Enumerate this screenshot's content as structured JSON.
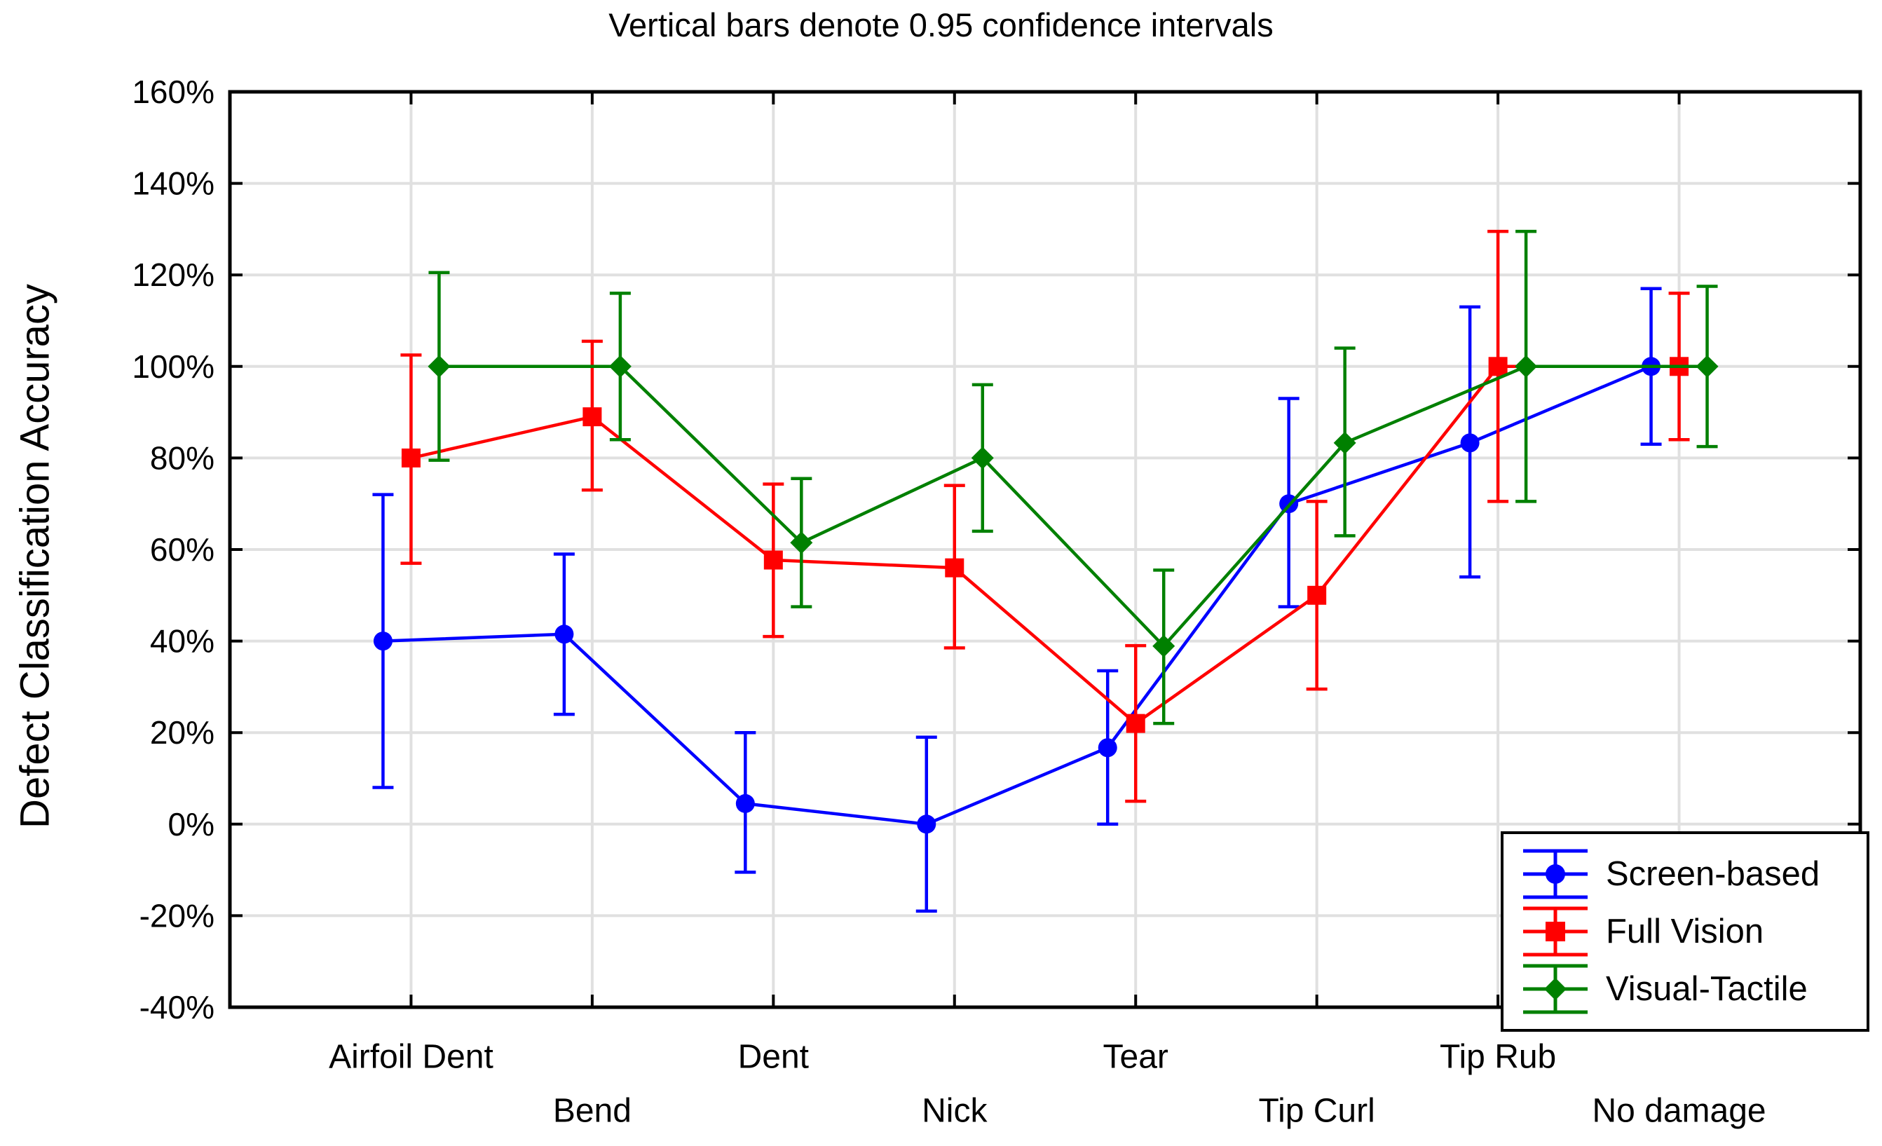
{
  "chart_data": {
    "type": "line",
    "title": "Vertical bars denote 0.95 confidence intervals",
    "xlabel": "",
    "ylabel": "Defect Classification Accuracy",
    "categories": [
      "Airfoil Dent",
      "Bend",
      "Dent",
      "Nick",
      "Tear",
      "Tip Curl",
      "Tip Rub",
      "No damage"
    ],
    "y_tick_labels": [
      "160%",
      "140%",
      "120%",
      "100%",
      "80%",
      "60%",
      "40%",
      "20%",
      "0%",
      "-20%",
      "-40%"
    ],
    "y_tick_values": [
      160,
      140,
      120,
      100,
      80,
      60,
      40,
      20,
      0,
      -20,
      -40
    ],
    "ylim": [
      -40,
      160
    ],
    "unit": "%",
    "grid": true,
    "legend_position": "bottom-right",
    "error_bar_meaning": "0.95 confidence intervals",
    "colors": {
      "grid": "#E0E0E0",
      "axis": "#000000",
      "background": "#FFFFFF"
    },
    "series": [
      {
        "name": "Screen-based",
        "marker": "circle",
        "color": "#0000FF",
        "values": [
          40,
          41.5,
          4.5,
          0,
          16.7,
          70,
          83.3,
          100
        ],
        "ci_low": [
          8,
          24,
          -10.5,
          -19,
          0,
          47.5,
          54,
          83
        ],
        "ci_high": [
          72,
          59,
          20,
          19,
          33.5,
          93,
          113,
          117
        ]
      },
      {
        "name": "Full Vision",
        "marker": "square",
        "color": "#FF0000",
        "values": [
          80,
          89,
          57.7,
          56,
          22,
          50,
          100,
          100
        ],
        "ci_low": [
          57,
          73,
          41,
          38.5,
          5,
          29.5,
          70.5,
          84
        ],
        "ci_high": [
          102.5,
          105.5,
          74.3,
          74,
          39,
          70.5,
          129.5,
          116
        ]
      },
      {
        "name": "Visual-Tactile",
        "marker": "diamond",
        "color": "#008000",
        "values": [
          100,
          100,
          61.5,
          80,
          38.9,
          83.3,
          100,
          100
        ],
        "ci_low": [
          79.5,
          84,
          47.5,
          64,
          22,
          63,
          70.5,
          82.5
        ],
        "ci_high": [
          120.5,
          116,
          75.5,
          96,
          55.5,
          104,
          129.5,
          117.5
        ]
      }
    ]
  }
}
